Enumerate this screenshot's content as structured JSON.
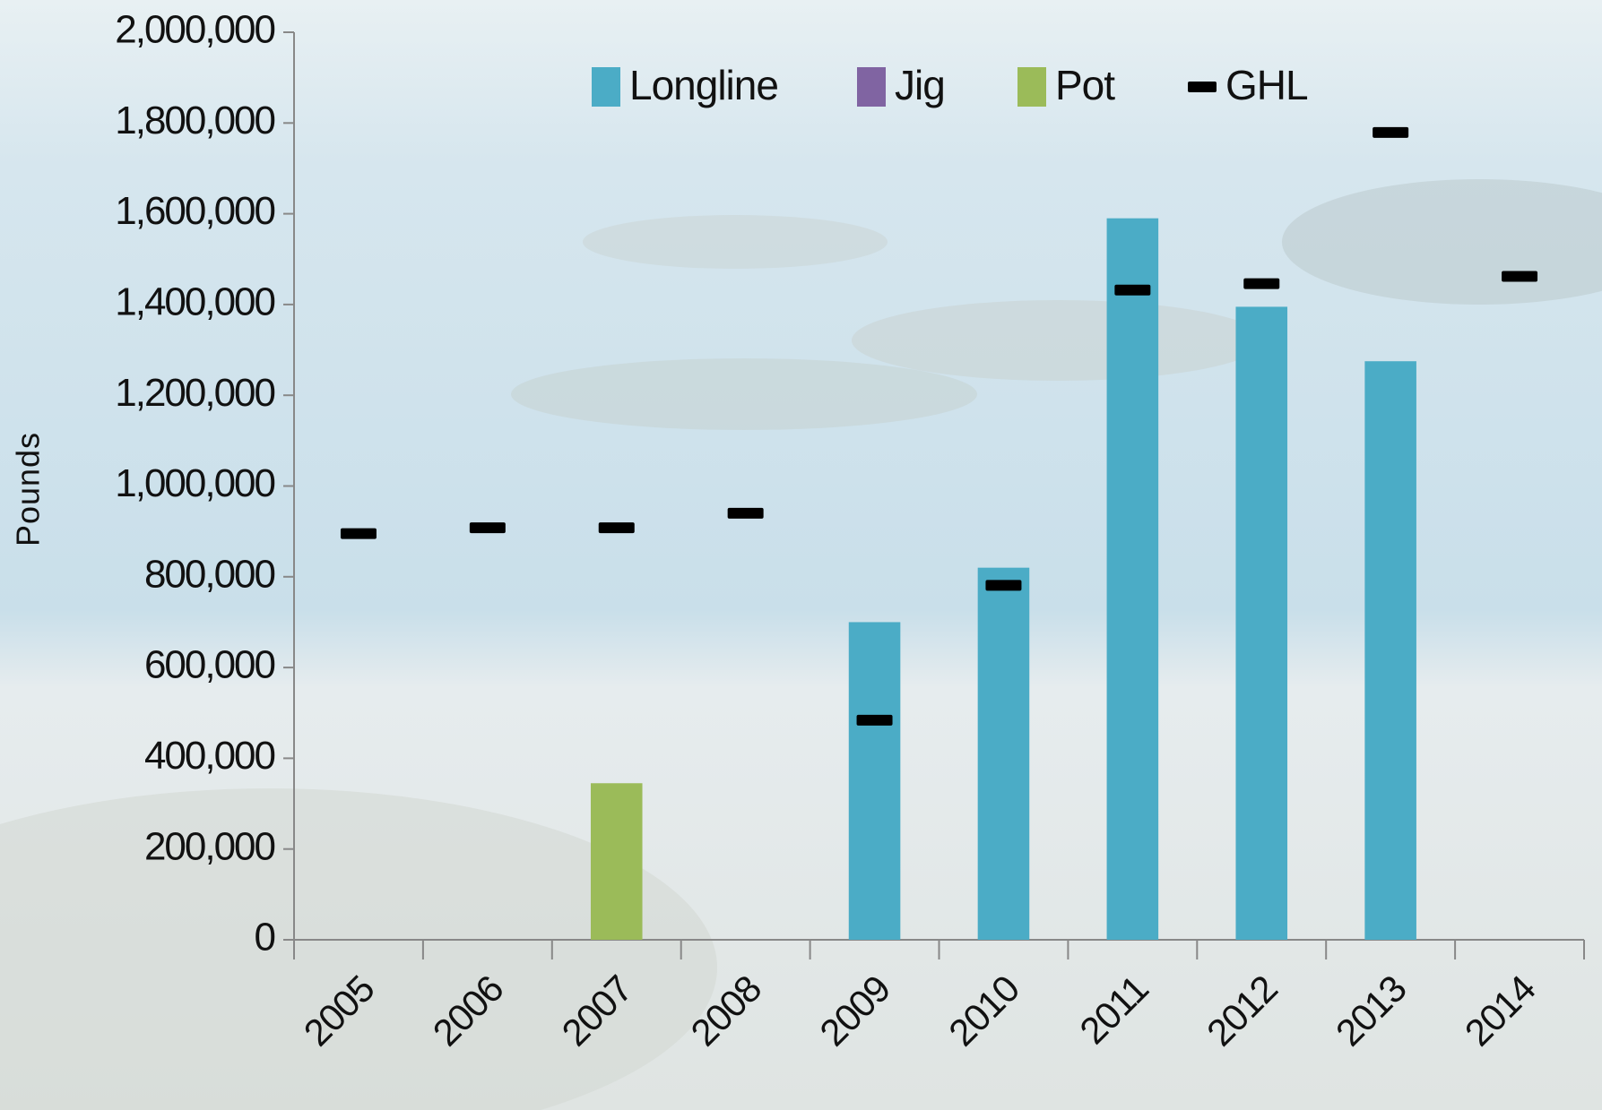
{
  "chart_data": {
    "type": "bar",
    "stacked": true,
    "ylabel": "Pounds",
    "categories": [
      "2005",
      "2006",
      "2007",
      "2008",
      "2009",
      "2010",
      "2011",
      "2012",
      "2013",
      "2014"
    ],
    "series": [
      {
        "name": "Longline",
        "color": "#4bacc6",
        "values": [
          0,
          0,
          0,
          0,
          700000,
          820000,
          1590000,
          1395000,
          1275000,
          0
        ]
      },
      {
        "name": "Jig",
        "color": "#8064a2",
        "values": [
          0,
          0,
          0,
          0,
          0,
          0,
          0,
          0,
          0,
          0
        ]
      },
      {
        "name": "Pot",
        "color": "#9bbb59",
        "values": [
          0,
          0,
          345000,
          0,
          0,
          0,
          0,
          0,
          0,
          0
        ]
      },
      {
        "name": "GHL",
        "color": "#000000",
        "type": "marker",
        "values": [
          895000,
          908000,
          908000,
          940000,
          484000,
          781000,
          1432000,
          1446000,
          1779000,
          1462000
        ]
      }
    ],
    "ylim": [
      0,
      2000000
    ],
    "yticks": [
      {
        "value": 0,
        "label": "0"
      },
      {
        "value": 200000,
        "label": "200,000"
      },
      {
        "value": 400000,
        "label": "400,000"
      },
      {
        "value": 600000,
        "label": "600,000"
      },
      {
        "value": 800000,
        "label": "800,000"
      },
      {
        "value": 1000000,
        "label": "1,000,000"
      },
      {
        "value": 1200000,
        "label": "1,200,000"
      },
      {
        "value": 1400000,
        "label": "1,400,000"
      },
      {
        "value": 1600000,
        "label": "1,600,000"
      },
      {
        "value": 1800000,
        "label": "1,800,000"
      },
      {
        "value": 2000000,
        "label": "2,000,000"
      }
    ],
    "legend": "top"
  }
}
